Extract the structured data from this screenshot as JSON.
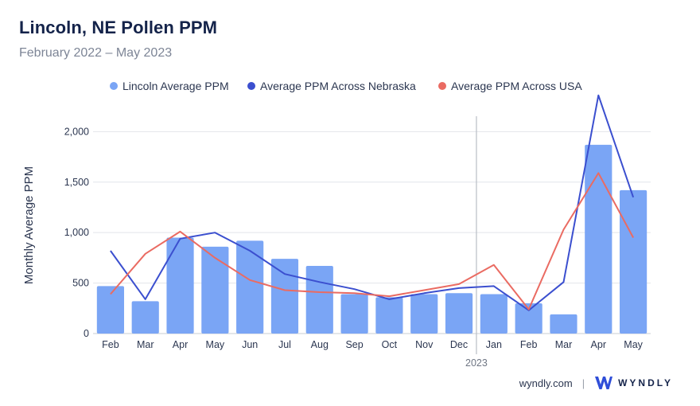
{
  "header": {
    "title": "Lincoln, NE Pollen PPM",
    "subtitle": "February 2022 – May 2023"
  },
  "footer": {
    "site": "wyndly.com",
    "separator": "|",
    "brand": "WYNDLY"
  },
  "colors": {
    "bars": "#7aa5f5",
    "nebraska": "#3b4fcf",
    "usa": "#ea6b62",
    "grid": "#e2e5ea",
    "divider": "#b9bec6"
  },
  "chart_data": {
    "type": "bar",
    "title": "Lincoln, NE Pollen PPM",
    "subtitle": "February 2022 – May 2023",
    "ylabel": "Monthly Average PPM",
    "xlabel": "",
    "ylim": [
      0,
      2200
    ],
    "yticks": [
      0,
      500,
      1000,
      1500,
      2000
    ],
    "ytick_labels": [
      "0",
      "500",
      "1,000",
      "1,500",
      "2,000"
    ],
    "grid": true,
    "legend_position": "top",
    "categories": [
      "Feb",
      "Mar",
      "Apr",
      "May",
      "Jun",
      "Jul",
      "Aug",
      "Sep",
      "Oct",
      "Nov",
      "Dec",
      "Jan",
      "Feb",
      "Mar",
      "Apr",
      "May"
    ],
    "year_divider": {
      "before_index": 11,
      "label": "2023"
    },
    "series": [
      {
        "name": "Lincoln Average PPM",
        "kind": "bar",
        "values": [
          470,
          320,
          950,
          860,
          920,
          740,
          670,
          390,
          360,
          390,
          400,
          390,
          300,
          190,
          1870,
          1420
        ]
      },
      {
        "name": "Average PPM Across Nebraska",
        "kind": "line",
        "values": [
          820,
          340,
          940,
          1000,
          820,
          590,
          510,
          440,
          340,
          400,
          450,
          470,
          230,
          510,
          2360,
          1350
        ]
      },
      {
        "name": "Average PPM Across USA",
        "kind": "line",
        "values": [
          390,
          790,
          1010,
          750,
          530,
          430,
          410,
          400,
          370,
          430,
          490,
          680,
          240,
          1030,
          1590,
          950
        ]
      }
    ]
  }
}
